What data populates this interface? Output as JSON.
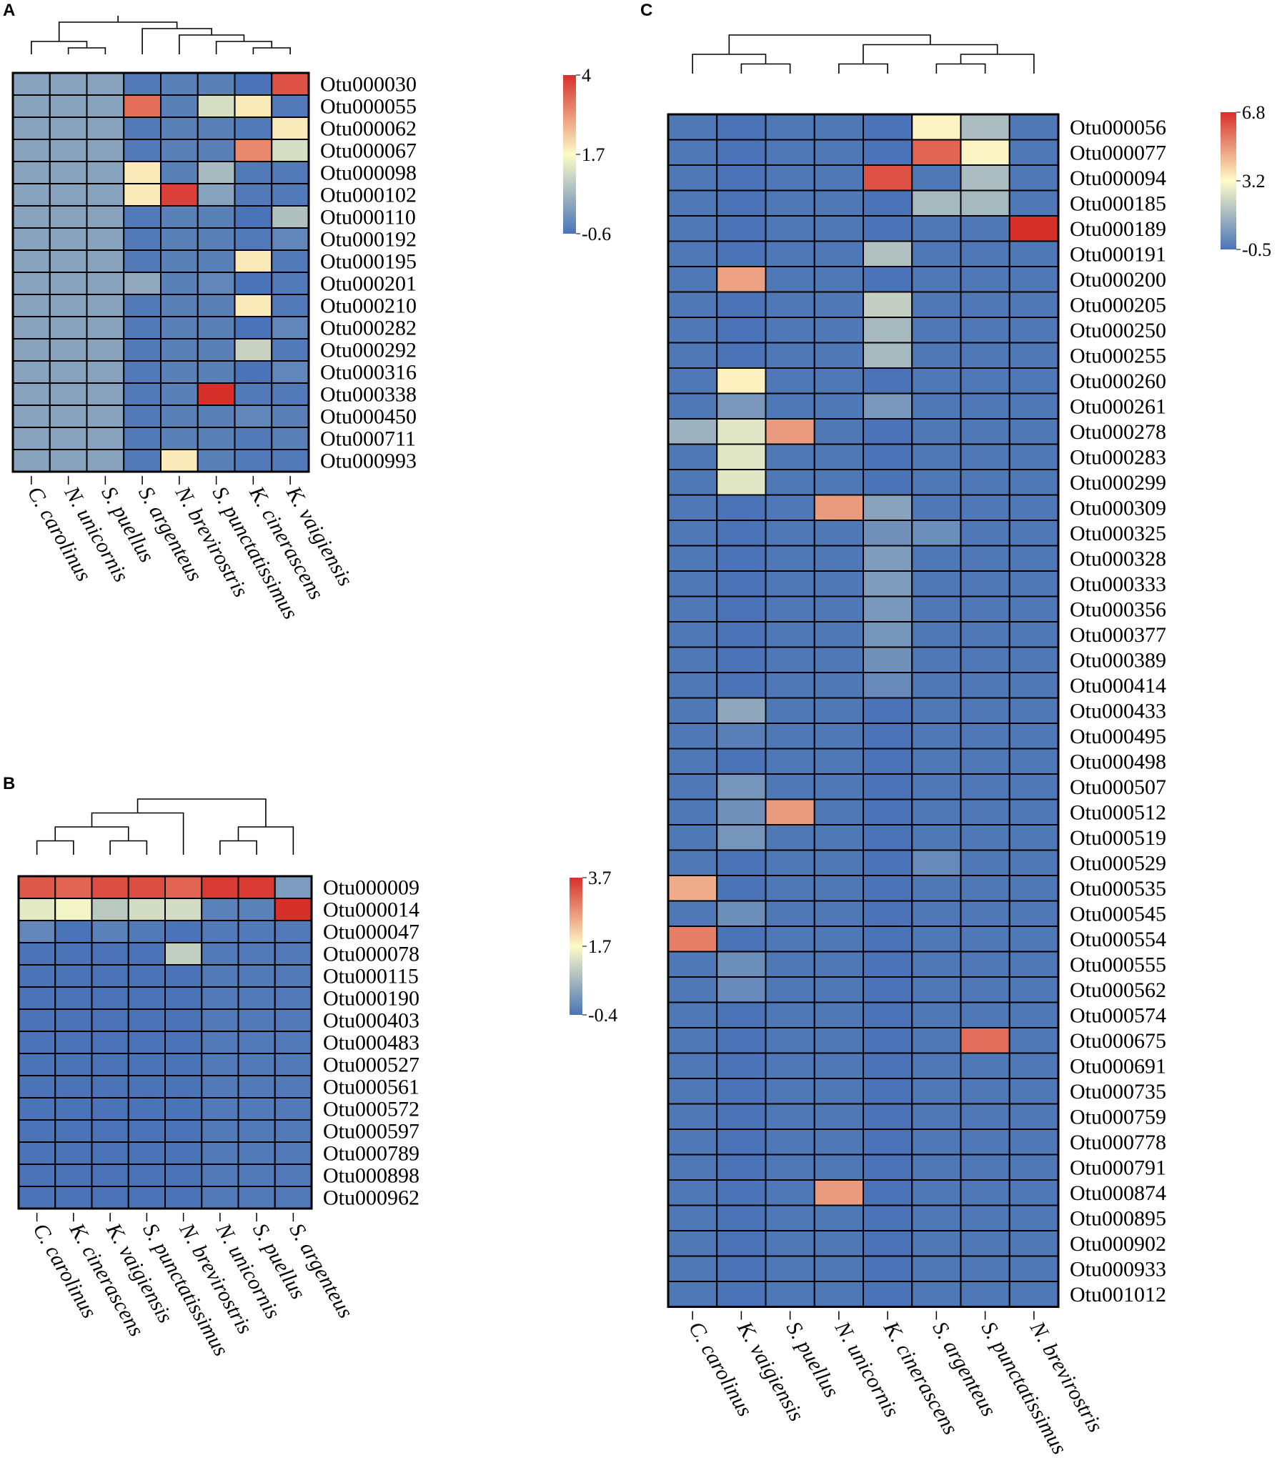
{
  "chart_data": [
    {
      "panel": "A",
      "type": "heatmap",
      "columns": [
        "C. carolinus",
        "N. unicornis",
        "S. puellus",
        "S. argenteus",
        "N. brevirostris",
        "S. punctatissimus",
        "K. cinerascens",
        "K. vaigiensis"
      ],
      "rows": [
        "Otu000030",
        "Otu000055",
        "Otu000062",
        "Otu000067",
        "Otu000098",
        "Otu000102",
        "Otu000110",
        "Otu000192",
        "Otu000195",
        "Otu000201",
        "Otu000210",
        "Otu000282",
        "Otu000292",
        "Otu000316",
        "Otu000338",
        "Otu000450",
        "Otu000711",
        "Otu000993"
      ],
      "values": [
        [
          0.2,
          0.2,
          0.2,
          -0.5,
          -0.4,
          -0.4,
          -0.6,
          3.6
        ],
        [
          0.2,
          0.2,
          0.2,
          3.3,
          -0.4,
          1.2,
          1.9,
          -0.5
        ],
        [
          0.2,
          0.2,
          0.2,
          -0.5,
          -0.4,
          -0.4,
          -0.5,
          1.9
        ],
        [
          0.2,
          0.2,
          0.2,
          -0.5,
          -0.4,
          -0.4,
          3.0,
          1.2
        ],
        [
          0.2,
          0.2,
          0.2,
          1.9,
          -0.4,
          0.6,
          -0.5,
          -0.5
        ],
        [
          0.2,
          0.2,
          0.2,
          1.9,
          3.8,
          0.2,
          -0.5,
          -0.5
        ],
        [
          0.2,
          0.2,
          0.2,
          -0.5,
          -0.4,
          -0.4,
          -0.6,
          0.7
        ],
        [
          0.2,
          0.2,
          0.2,
          -0.5,
          -0.4,
          -0.4,
          -0.5,
          -0.3
        ],
        [
          0.2,
          0.2,
          0.2,
          -0.5,
          -0.4,
          -0.4,
          1.9,
          -0.5
        ],
        [
          0.2,
          0.2,
          0.2,
          0.3,
          -0.4,
          -0.3,
          -0.6,
          -0.5
        ],
        [
          0.2,
          0.2,
          0.2,
          -0.5,
          -0.4,
          -0.4,
          1.9,
          -0.5
        ],
        [
          0.2,
          0.2,
          0.2,
          -0.5,
          -0.4,
          -0.4,
          -0.6,
          -0.3
        ],
        [
          0.2,
          0.2,
          0.2,
          -0.5,
          -0.4,
          -0.4,
          1.0,
          -0.5
        ],
        [
          0.2,
          0.2,
          0.2,
          -0.5,
          -0.4,
          -0.4,
          -0.6,
          -0.3
        ],
        [
          0.2,
          0.2,
          0.2,
          -0.5,
          -0.4,
          4.0,
          -0.5,
          -0.5
        ],
        [
          0.2,
          0.2,
          0.2,
          -0.5,
          -0.4,
          -0.4,
          -0.3,
          -0.4
        ],
        [
          0.2,
          0.2,
          0.2,
          -0.5,
          -0.4,
          -0.4,
          -0.5,
          -0.4
        ],
        [
          0.2,
          0.2,
          0.2,
          -0.5,
          1.9,
          -0.4,
          -0.5,
          -0.5
        ]
      ],
      "scale": {
        "min": -0.6,
        "mid": 1.7,
        "max": 4,
        "labels": [
          "4",
          "1.7",
          "-0.6"
        ]
      },
      "dendrogram_tree": [
        [
          [
            0,
            [
              1,
              2
            ]
          ],
          [
            3,
            [
              4,
              [
                5,
                [
                  6,
                  7
                ]
              ]
            ]
          ]
        ]
      ]
    },
    {
      "panel": "B",
      "type": "heatmap",
      "columns": [
        "C. carolinus",
        "K. cinerascens",
        "K. vaigiensis",
        "S. punctatissimus",
        "N. brevirostris",
        "N. unicornis",
        "S. puellus",
        "S. argenteus"
      ],
      "rows": [
        "Otu000009",
        "Otu000014",
        "Otu000047",
        "Otu000078",
        "Otu000115",
        "Otu000190",
        "Otu000403",
        "Otu000483",
        "Otu000527",
        "Otu000561",
        "Otu000572",
        "Otu000597",
        "Otu000789",
        "Otu000898",
        "Otu000962"
      ],
      "values": [
        [
          3.3,
          3.2,
          3.4,
          3.4,
          3.2,
          3.6,
          3.6,
          0.2
        ],
        [
          1.4,
          1.6,
          0.9,
          1.2,
          1.2,
          -0.2,
          -0.2,
          3.7
        ],
        [
          -0.1,
          -0.4,
          -0.2,
          -0.3,
          -0.4,
          -0.3,
          -0.3,
          -0.3
        ],
        [
          -0.4,
          -0.4,
          -0.4,
          -0.4,
          1.0,
          -0.3,
          -0.3,
          -0.3
        ],
        [
          -0.4,
          -0.4,
          -0.4,
          -0.4,
          -0.4,
          -0.3,
          -0.3,
          -0.3
        ],
        [
          -0.4,
          -0.4,
          -0.4,
          -0.4,
          -0.4,
          -0.3,
          -0.3,
          -0.3
        ],
        [
          -0.4,
          -0.4,
          -0.4,
          -0.4,
          -0.4,
          -0.3,
          -0.3,
          -0.3
        ],
        [
          -0.4,
          -0.4,
          -0.4,
          -0.4,
          -0.4,
          -0.3,
          -0.3,
          -0.3
        ],
        [
          -0.4,
          -0.4,
          -0.4,
          -0.4,
          -0.4,
          -0.3,
          -0.3,
          -0.3
        ],
        [
          -0.4,
          -0.4,
          -0.4,
          -0.4,
          -0.4,
          -0.3,
          -0.3,
          -0.3
        ],
        [
          -0.4,
          -0.4,
          -0.4,
          -0.4,
          -0.4,
          -0.3,
          -0.3,
          -0.3
        ],
        [
          -0.4,
          -0.4,
          -0.4,
          -0.4,
          -0.4,
          -0.3,
          -0.3,
          -0.3
        ],
        [
          -0.4,
          -0.4,
          -0.4,
          -0.4,
          -0.4,
          -0.3,
          -0.3,
          -0.3
        ],
        [
          -0.4,
          -0.4,
          -0.4,
          -0.4,
          -0.4,
          -0.3,
          -0.3,
          -0.3
        ],
        [
          -0.4,
          -0.4,
          -0.4,
          -0.4,
          -0.4,
          -0.3,
          -0.3,
          -0.3
        ]
      ],
      "scale": {
        "min": -0.4,
        "mid": 1.7,
        "max": 3.7,
        "labels": [
          "3.7",
          "1.7",
          "-0.4"
        ]
      },
      "dendrogram_tree": [
        [
          [
            [
              0,
              1
            ],
            [
              2,
              3
            ]
          ],
          4
        ],
        [
          [
            5,
            6
          ],
          7
        ]
      ]
    },
    {
      "panel": "C",
      "type": "heatmap",
      "columns": [
        "C. carolinus",
        "K. vaigiensis",
        "S. puellus",
        "N. unicornis",
        "K. cinerascens",
        "S. argenteus",
        "S. punctatissimus",
        "N. brevirostris"
      ],
      "rows": [
        "Otu000056",
        "Otu000077",
        "Otu000094",
        "Otu000185",
        "Otu000189",
        "Otu000191",
        "Otu000200",
        "Otu000205",
        "Otu000250",
        "Otu000255",
        "Otu000260",
        "Otu000261",
        "Otu000278",
        "Otu000283",
        "Otu000299",
        "Otu000309",
        "Otu000325",
        "Otu000328",
        "Otu000333",
        "Otu000356",
        "Otu000377",
        "Otu000389",
        "Otu000414",
        "Otu000433",
        "Otu000495",
        "Otu000498",
        "Otu000507",
        "Otu000512",
        "Otu000519",
        "Otu000529",
        "Otu000535",
        "Otu000545",
        "Otu000554",
        "Otu000555",
        "Otu000562",
        "Otu000574",
        "Otu000675",
        "Otu000691",
        "Otu000735",
        "Otu000759",
        "Otu000778",
        "Otu000791",
        "Otu000874",
        "Otu000895",
        "Otu000902",
        "Otu000933",
        "Otu001012"
      ],
      "values": [
        [
          -0.4,
          -0.5,
          -0.4,
          -0.4,
          -0.5,
          3.3,
          1.5,
          -0.4
        ],
        [
          -0.4,
          -0.5,
          -0.4,
          -0.4,
          -0.5,
          5.9,
          3.3,
          -0.4
        ],
        [
          -0.4,
          -0.5,
          -0.4,
          -0.4,
          6.2,
          -0.4,
          1.5,
          -0.4
        ],
        [
          -0.4,
          -0.5,
          -0.4,
          -0.4,
          -0.5,
          1.4,
          1.4,
          -0.4
        ],
        [
          -0.4,
          -0.5,
          -0.4,
          -0.4,
          -0.5,
          -0.4,
          -0.4,
          6.8
        ],
        [
          -0.4,
          -0.5,
          -0.4,
          -0.4,
          1.6,
          -0.4,
          -0.4,
          -0.4
        ],
        [
          -0.4,
          4.8,
          -0.4,
          -0.4,
          -0.5,
          -0.4,
          -0.4,
          -0.4
        ],
        [
          -0.4,
          -0.5,
          -0.4,
          -0.4,
          2.0,
          -0.4,
          -0.4,
          -0.4
        ],
        [
          -0.4,
          -0.5,
          -0.4,
          -0.4,
          1.4,
          -0.4,
          -0.4,
          -0.4
        ],
        [
          -0.4,
          -0.5,
          -0.4,
          -0.4,
          1.4,
          -0.4,
          -0.4,
          -0.4
        ],
        [
          -0.4,
          3.4,
          -0.4,
          -0.4,
          -0.5,
          -0.4,
          -0.4,
          -0.4
        ],
        [
          -0.4,
          0.5,
          -0.4,
          -0.4,
          0.5,
          -0.4,
          -0.4,
          -0.4
        ],
        [
          1.2,
          2.6,
          4.9,
          -0.4,
          -0.5,
          -0.4,
          -0.4,
          -0.4
        ],
        [
          -0.4,
          2.6,
          -0.4,
          -0.4,
          -0.5,
          -0.4,
          -0.4,
          -0.4
        ],
        [
          -0.4,
          2.6,
          -0.4,
          -0.4,
          -0.5,
          -0.4,
          -0.4,
          -0.4
        ],
        [
          -0.4,
          -0.5,
          -0.4,
          4.9,
          0.8,
          -0.4,
          -0.4,
          -0.4
        ],
        [
          -0.4,
          -0.5,
          -0.4,
          -0.4,
          0.3,
          0.2,
          -0.4,
          -0.4
        ],
        [
          -0.4,
          -0.5,
          -0.4,
          -0.4,
          0.6,
          -0.4,
          -0.4,
          -0.4
        ],
        [
          -0.4,
          -0.5,
          -0.4,
          -0.4,
          0.6,
          -0.4,
          -0.4,
          -0.4
        ],
        [
          -0.4,
          -0.5,
          -0.4,
          -0.4,
          0.5,
          -0.4,
          -0.4,
          -0.4
        ],
        [
          -0.4,
          -0.5,
          -0.4,
          -0.4,
          0.4,
          -0.4,
          -0.4,
          -0.4
        ],
        [
          -0.4,
          -0.5,
          -0.4,
          -0.4,
          0.3,
          -0.4,
          -0.4,
          -0.4
        ],
        [
          -0.4,
          -0.5,
          -0.4,
          -0.4,
          0.1,
          -0.4,
          -0.4,
          -0.4
        ],
        [
          -0.4,
          0.9,
          -0.4,
          -0.4,
          -0.5,
          -0.4,
          -0.4,
          -0.4
        ],
        [
          -0.4,
          -0.2,
          -0.4,
          -0.4,
          -0.5,
          -0.4,
          -0.4,
          -0.4
        ],
        [
          -0.4,
          -0.5,
          -0.4,
          -0.4,
          -0.5,
          -0.4,
          -0.4,
          -0.4
        ],
        [
          -0.4,
          0.4,
          -0.4,
          -0.4,
          -0.5,
          -0.4,
          -0.4,
          -0.4
        ],
        [
          -0.4,
          0.3,
          4.9,
          -0.4,
          -0.5,
          -0.4,
          -0.4,
          -0.4
        ],
        [
          -0.4,
          0.4,
          -0.4,
          -0.4,
          -0.5,
          -0.4,
          -0.4,
          -0.4
        ],
        [
          -0.4,
          -0.5,
          -0.4,
          -0.4,
          -0.5,
          0.1,
          -0.4,
          -0.4
        ],
        [
          4.6,
          -0.5,
          -0.4,
          -0.4,
          -0.5,
          -0.4,
          -0.4,
          -0.4
        ],
        [
          -0.4,
          0.2,
          -0.4,
          -0.4,
          -0.5,
          -0.4,
          -0.4,
          -0.4
        ],
        [
          5.4,
          -0.5,
          -0.4,
          -0.4,
          -0.5,
          -0.4,
          -0.4,
          -0.4
        ],
        [
          -0.4,
          0.2,
          -0.4,
          -0.4,
          -0.5,
          -0.4,
          -0.4,
          -0.4
        ],
        [
          -0.4,
          0.1,
          -0.4,
          -0.4,
          -0.5,
          -0.4,
          -0.4,
          -0.4
        ],
        [
          -0.4,
          -0.5,
          -0.4,
          -0.4,
          -0.5,
          -0.4,
          -0.4,
          -0.4
        ],
        [
          -0.4,
          -0.5,
          -0.4,
          -0.4,
          -0.5,
          -0.4,
          5.7,
          -0.4
        ],
        [
          -0.4,
          -0.5,
          -0.4,
          -0.4,
          -0.5,
          -0.4,
          -0.4,
          -0.4
        ],
        [
          -0.4,
          -0.5,
          -0.4,
          -0.4,
          -0.5,
          -0.4,
          -0.4,
          -0.4
        ],
        [
          -0.4,
          -0.5,
          -0.4,
          -0.4,
          -0.5,
          -0.4,
          -0.4,
          -0.4
        ],
        [
          -0.4,
          -0.5,
          -0.4,
          -0.4,
          -0.5,
          -0.4,
          -0.4,
          -0.4
        ],
        [
          -0.4,
          -0.5,
          -0.4,
          -0.4,
          -0.5,
          -0.4,
          -0.4,
          -0.4
        ],
        [
          -0.4,
          -0.5,
          -0.4,
          4.9,
          -0.5,
          -0.4,
          -0.4,
          -0.4
        ],
        [
          -0.4,
          -0.5,
          -0.4,
          -0.4,
          -0.5,
          -0.4,
          -0.4,
          -0.4
        ],
        [
          -0.4,
          -0.5,
          -0.4,
          -0.4,
          -0.5,
          -0.4,
          -0.4,
          -0.4
        ],
        [
          -0.4,
          -0.5,
          -0.4,
          -0.4,
          -0.5,
          -0.4,
          -0.4,
          -0.4
        ],
        [
          -0.4,
          -0.5,
          -0.4,
          -0.4,
          -0.5,
          -0.4,
          -0.4,
          -0.4
        ]
      ],
      "scale": {
        "min": -0.5,
        "mid": 3.2,
        "max": 6.8,
        "labels": [
          "6.8",
          "3.2",
          "-0.5"
        ]
      },
      "dendrogram_tree": [
        [
          0,
          [
            1,
            2
          ]
        ],
        [
          [
            3,
            4
          ],
          [
            [
              5,
              6
            ],
            7
          ]
        ]
      ]
    }
  ],
  "colors": {
    "low": "#4a74b7",
    "mid": "#fdfbc7",
    "high": "#d7302b",
    "grid": "#000000"
  }
}
